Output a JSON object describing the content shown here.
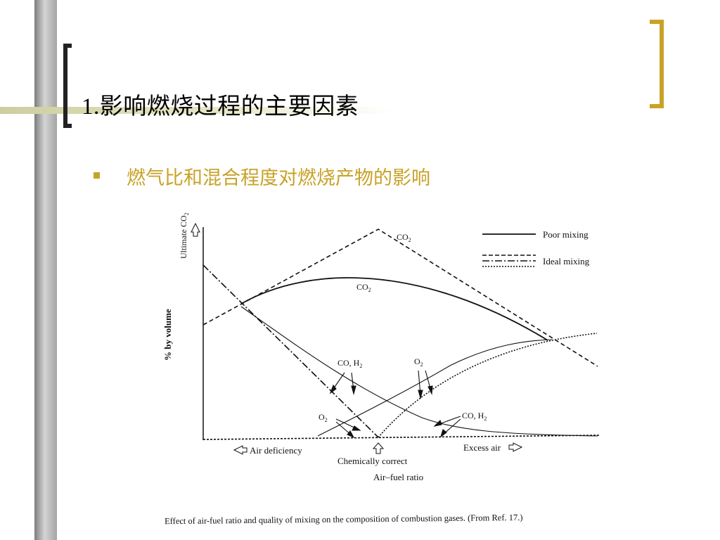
{
  "slide": {
    "title": "1.影响燃烧过程的主要因素",
    "bullet": "燃气比和混合程度对燃烧产物的影响",
    "accent_color": "#c8a227"
  },
  "figure": {
    "y_axis_top_label": "Ultimate CO",
    "y_axis_top_label_sub": "2",
    "y_axis_label": "% by volume",
    "x_axis_label": "Air–fuel ratio",
    "left_marker": "Air deficiency",
    "center_marker": "Chemically correct",
    "right_marker": "Excess air",
    "legend": {
      "poor_mixing": "Poor mixing",
      "ideal_mixing": "Ideal mixing"
    },
    "labels": {
      "co2_ideal": "CO",
      "co2_ideal_sub": "2",
      "co2_poor": "CO",
      "co2_poor_sub": "2",
      "co_h2_upper": "CO, H",
      "co_h2_upper_sub": "2",
      "o2_upper": "O",
      "o2_upper_sub": "2",
      "o2_lower": "O",
      "o2_lower_sub": "2",
      "co_h2_lower": "CO, H",
      "co_h2_lower_sub": "2"
    },
    "caption": "Effect of air-fuel ratio and quality of mixing on the composition of combustion gases. (From Ref. 17.)"
  }
}
